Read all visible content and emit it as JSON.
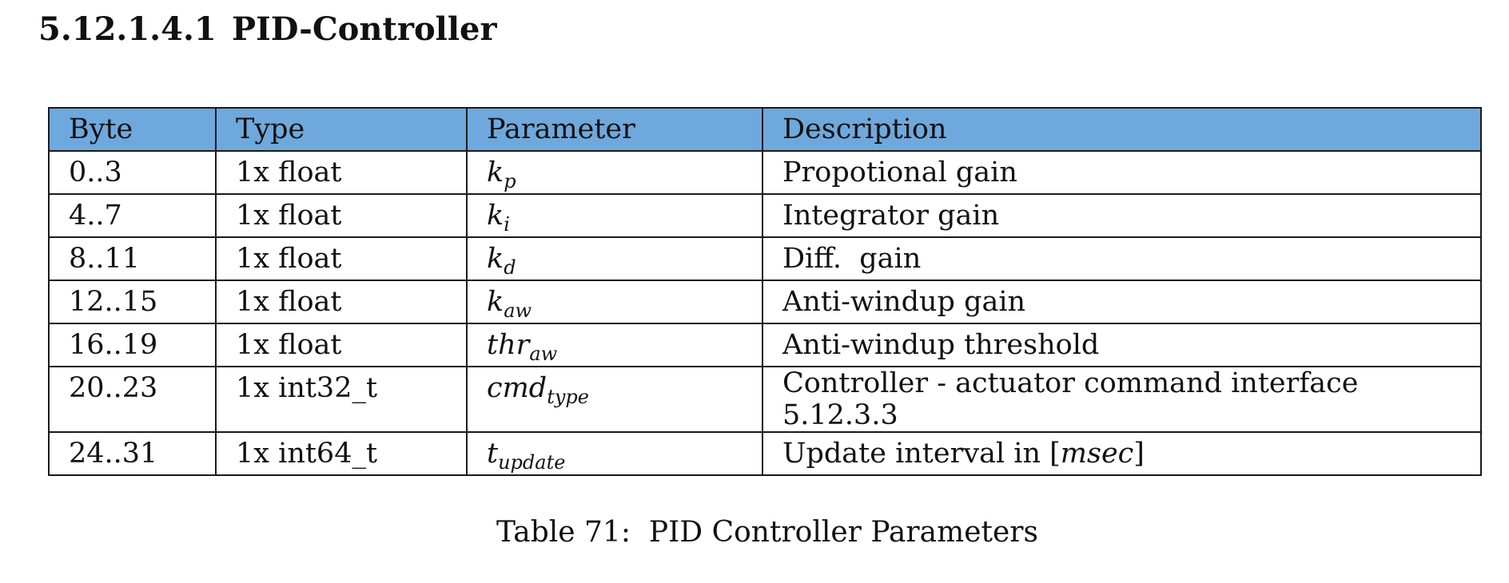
{
  "section": {
    "number": "5.12.1.4.1",
    "title": "PID-Controller"
  },
  "table": {
    "headers": [
      "Byte",
      "Type",
      "Parameter",
      "Description"
    ],
    "rows": [
      {
        "byte": "0..3",
        "type": "1x float",
        "param_base": "k",
        "param_sub": "p",
        "description": "Propotional gain"
      },
      {
        "byte": "4..7",
        "type": "1x float",
        "param_base": "k",
        "param_sub": "i",
        "description": "Integrator gain"
      },
      {
        "byte": "8..11",
        "type": "1x float",
        "param_base": "k",
        "param_sub": "d",
        "description": "Diff.  gain"
      },
      {
        "byte": "12..15",
        "type": "1x float",
        "param_base": "k",
        "param_sub": "aw",
        "description": "Anti-windup gain"
      },
      {
        "byte": "16..19",
        "type": "1x float",
        "param_base": "thr",
        "param_sub": "aw",
        "description": "Anti-windup threshold"
      },
      {
        "byte": "20..23",
        "type": "1x int32_t",
        "param_base": "cmd",
        "param_sub": "type",
        "description": "Controller - actuator command interface",
        "description_line2": "5.12.3.3"
      },
      {
        "byte": "24..31",
        "type": "1x int64_t",
        "param_base": "t",
        "param_sub": "update",
        "description": "Update interval in",
        "description_unit": "msec"
      }
    ]
  },
  "caption": "Table 71:  PID Controller Parameters"
}
